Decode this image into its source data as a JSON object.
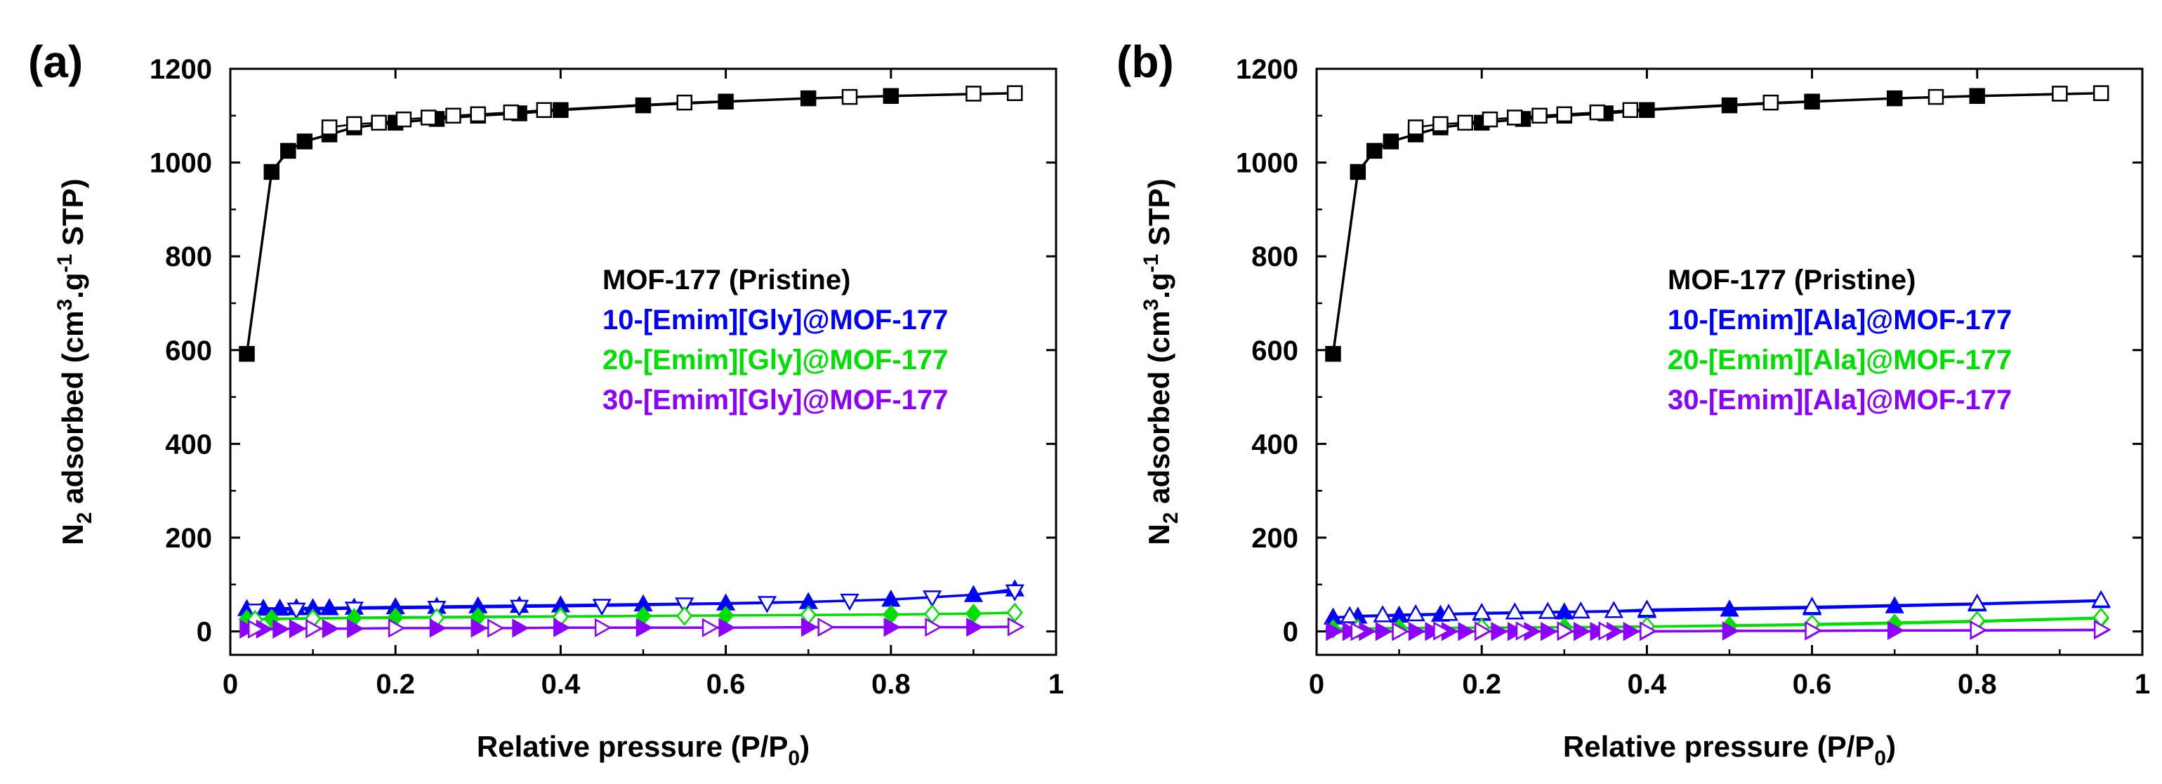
{
  "chart_data": [
    {
      "type": "line",
      "panel_label": "(a)",
      "xlabel": "Relative pressure (P/P",
      "xlabel_sub": "0",
      "xlabel_end": ")",
      "ylabel_pre": "N",
      "ylabel_sub": "2",
      "ylabel_mid": " adsorbed (cm",
      "ylabel_sup": "3",
      "ylabel_mid2": ".g",
      "ylabel_sup2": "-1",
      "ylabel_end": " STP)",
      "xlim": [
        0,
        1
      ],
      "ylim": [
        -50,
        1200
      ],
      "xticks": [
        0,
        0.2,
        0.4,
        0.6,
        0.8,
        1
      ],
      "xtick_labels": [
        "0",
        "0.2",
        "0.4",
        "0.6",
        "0.8",
        "1"
      ],
      "yticks": [
        0,
        200,
        400,
        600,
        800,
        1000,
        1200
      ],
      "ytick_labels": [
        "0",
        "200",
        "400",
        "600",
        "800",
        "1000",
        "1200"
      ],
      "legend_position": "center-right",
      "series": [
        {
          "name": "MOF-177 (Pristine)",
          "color": "#000000",
          "ads_marker": "square-filled",
          "des_marker": "square-open",
          "ads": {
            "x": [
              0.02,
              0.05,
              0.07,
              0.09,
              0.12,
              0.15,
              0.2,
              0.25,
              0.3,
              0.35,
              0.4,
              0.5,
              0.6,
              0.7,
              0.8,
              0.95
            ],
            "y": [
              592,
              980,
              1025,
              1045,
              1060,
              1075,
              1085,
              1093,
              1100,
              1105,
              1112,
              1122,
              1130,
              1137,
              1142,
              1148
            ]
          },
          "des": {
            "x": [
              0.95,
              0.9,
              0.75,
              0.55,
              0.38,
              0.34,
              0.3,
              0.27,
              0.24,
              0.21,
              0.18,
              0.15,
              0.12
            ],
            "y": [
              1148,
              1147,
              1140,
              1128,
              1112,
              1107,
              1103,
              1100,
              1096,
              1092,
              1085,
              1082,
              1075
            ]
          }
        },
        {
          "name": "10-[Emim][Gly]@MOF-177",
          "color": "#0000ff",
          "ads_marker": "triangle-up-filled",
          "des_marker": "triangle-down-open",
          "ads": {
            "x": [
              0.02,
              0.04,
              0.06,
              0.08,
              0.1,
              0.12,
              0.15,
              0.2,
              0.25,
              0.3,
              0.35,
              0.4,
              0.5,
              0.6,
              0.7,
              0.8,
              0.9,
              0.95
            ],
            "y": [
              48,
              49,
              49,
              50,
              50,
              50,
              51,
              52,
              53,
              54,
              55,
              56,
              58,
              60,
              63,
              68,
              78,
              90
            ]
          },
          "des": {
            "x": [
              0.95,
              0.85,
              0.75,
              0.65,
              0.55,
              0.45,
              0.35,
              0.25,
              0.15,
              0.08,
              0.03
            ],
            "y": [
              85,
              72,
              65,
              60,
              57,
              54,
              52,
              50,
              48,
              46,
              44
            ]
          }
        },
        {
          "name": "20-[Emim][Gly]@MOF-177",
          "color": "#00e000",
          "ads_marker": "diamond-filled",
          "des_marker": "diamond-open",
          "ads": {
            "x": [
              0.02,
              0.05,
              0.1,
              0.15,
              0.2,
              0.3,
              0.4,
              0.5,
              0.6,
              0.7,
              0.8,
              0.9,
              0.95
            ],
            "y": [
              26,
              27,
              28,
              29,
              30,
              31,
              32,
              33,
              34,
              35,
              36,
              38,
              40
            ]
          },
          "des": {
            "x": [
              0.95,
              0.85,
              0.7,
              0.55,
              0.4,
              0.25,
              0.1,
              0.03
            ],
            "y": [
              40,
              37,
              35,
              33,
              31,
              29,
              27,
              25
            ]
          }
        },
        {
          "name": "30-[Emim][Gly]@MOF-177",
          "color": "#8b00ff",
          "ads_marker": "triangle-right-filled",
          "des_marker": "triangle-right-open",
          "ads": {
            "x": [
              0.02,
              0.04,
              0.06,
              0.08,
              0.1,
              0.12,
              0.15,
              0.2,
              0.25,
              0.3,
              0.35,
              0.4,
              0.5,
              0.6,
              0.7,
              0.8,
              0.9,
              0.95
            ],
            "y": [
              5,
              5,
              5,
              6,
              6,
              6,
              6,
              7,
              7,
              7,
              7,
              8,
              8,
              8,
              9,
              9,
              9,
              10
            ]
          },
          "des": {
            "x": [
              0.95,
              0.85,
              0.72,
              0.58,
              0.45,
              0.32,
              0.2,
              0.1,
              0.03
            ],
            "y": [
              10,
              9,
              9,
              8,
              8,
              7,
              7,
              6,
              5
            ]
          }
        }
      ]
    },
    {
      "type": "line",
      "panel_label": "(b)",
      "xlabel": "Relative pressure (P/P",
      "xlabel_sub": "0",
      "xlabel_end": ")",
      "ylabel_pre": "N",
      "ylabel_sub": "2",
      "ylabel_mid": " adsorbed (cm",
      "ylabel_sup": "3",
      "ylabel_mid2": ".g",
      "ylabel_sup2": "-1",
      "ylabel_end": " STP)",
      "xlim": [
        0,
        1
      ],
      "ylim": [
        -50,
        1200
      ],
      "xticks": [
        0,
        0.2,
        0.4,
        0.6,
        0.8,
        1
      ],
      "xtick_labels": [
        "0",
        "0.2",
        "0.4",
        "0.6",
        "0.8",
        "1"
      ],
      "yticks": [
        0,
        200,
        400,
        600,
        800,
        1000,
        1200
      ],
      "ytick_labels": [
        "0",
        "200",
        "400",
        "600",
        "800",
        "1000",
        "1200"
      ],
      "legend_position": "center-right",
      "series": [
        {
          "name": "MOF-177 (Pristine)",
          "color": "#000000",
          "ads_marker": "square-filled",
          "des_marker": "square-open",
          "ads": {
            "x": [
              0.02,
              0.05,
              0.07,
              0.09,
              0.12,
              0.15,
              0.2,
              0.25,
              0.3,
              0.35,
              0.4,
              0.5,
              0.6,
              0.7,
              0.8,
              0.95
            ],
            "y": [
              592,
              980,
              1025,
              1045,
              1060,
              1075,
              1085,
              1093,
              1100,
              1105,
              1112,
              1122,
              1130,
              1137,
              1142,
              1148
            ]
          },
          "des": {
            "x": [
              0.95,
              0.9,
              0.75,
              0.55,
              0.38,
              0.34,
              0.3,
              0.27,
              0.24,
              0.21,
              0.18,
              0.15,
              0.12
            ],
            "y": [
              1148,
              1147,
              1140,
              1128,
              1112,
              1107,
              1103,
              1100,
              1096,
              1092,
              1085,
              1082,
              1075
            ]
          }
        },
        {
          "name": "10-[Emim][Ala]@MOF-177",
          "color": "#0000ff",
          "ads_marker": "triangle-up-filled",
          "des_marker": "triangle-up-open",
          "ads": {
            "x": [
              0.02,
              0.05,
              0.1,
              0.15,
              0.2,
              0.3,
              0.4,
              0.5,
              0.6,
              0.7,
              0.8,
              0.95
            ],
            "y": [
              30,
              32,
              34,
              36,
              38,
              41,
              44,
              47,
              50,
              54,
              58,
              65
            ]
          },
          "des": {
            "x": [
              0.95,
              0.8,
              0.6,
              0.4,
              0.36,
              0.32,
              0.28,
              0.24,
              0.2,
              0.16,
              0.12,
              0.08,
              0.04
            ],
            "y": [
              67,
              60,
              53,
              47,
              44,
              43,
              42,
              41,
              40,
              38,
              37,
              35,
              33
            ]
          }
        },
        {
          "name": "20-[Emim][Ala]@MOF-177",
          "color": "#00e000",
          "ads_marker": "diamond-filled",
          "des_marker": "diamond-open",
          "ads": {
            "x": [
              0.02,
              0.05,
              0.1,
              0.2,
              0.3,
              0.4,
              0.5,
              0.6,
              0.7,
              0.8,
              0.95
            ],
            "y": [
              5,
              6,
              7,
              8,
              9,
              10,
              12,
              14,
              17,
              21,
              28
            ]
          },
          "des": {
            "x": [
              0.95,
              0.8,
              0.6,
              0.4,
              0.2,
              0.05
            ],
            "y": [
              30,
              23,
              16,
              11,
              8,
              6
            ]
          }
        },
        {
          "name": "30-[Emim][Ala]@MOF-177",
          "color": "#8b00ff",
          "ads_marker": "triangle-right-filled",
          "des_marker": "triangle-right-open",
          "ads": {
            "x": [
              0.02,
              0.04,
              0.06,
              0.08,
              0.1,
              0.12,
              0.14,
              0.16,
              0.18,
              0.2,
              0.22,
              0.24,
              0.26,
              0.28,
              0.3,
              0.32,
              0.34,
              0.36,
              0.38,
              0.4,
              0.5,
              0.6,
              0.7,
              0.8,
              0.95
            ],
            "y": [
              0,
              0,
              0,
              0,
              0,
              0,
              0,
              0,
              0,
              0,
              0,
              0,
              0,
              0,
              0,
              0,
              0,
              0,
              0,
              0,
              1,
              1,
              2,
              2,
              3
            ]
          },
          "des": {
            "x": [
              0.95,
              0.8,
              0.6,
              0.4,
              0.35,
              0.3,
              0.25,
              0.2,
              0.15,
              0.1,
              0.05
            ],
            "y": [
              4,
              3,
              2,
              1,
              1,
              1,
              1,
              1,
              1,
              0,
              0
            ]
          }
        }
      ]
    }
  ]
}
